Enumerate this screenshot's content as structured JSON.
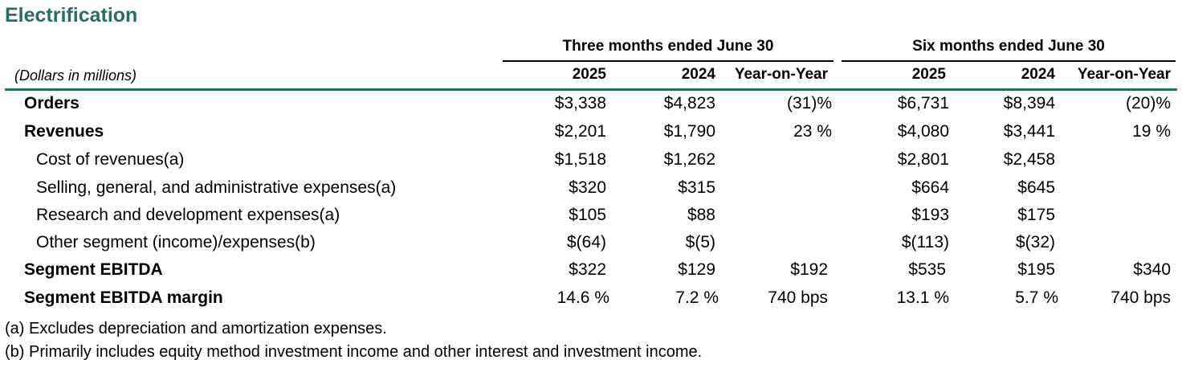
{
  "title": "Electrification",
  "header": {
    "group_three": "Three months ended June 30",
    "group_six": "Six months ended June 30",
    "units": "(Dollars in millions)",
    "columns": [
      "2025",
      "2024",
      "Year-on-Year",
      "2025",
      "2024",
      "Year-on-Year"
    ]
  },
  "rows": [
    {
      "label": "Orders",
      "bold": true,
      "values": [
        "$3,338",
        "$4,823",
        "(31)%",
        "$6,731",
        "$8,394",
        "(20)%"
      ]
    },
    {
      "label": "Revenues",
      "bold": true,
      "values": [
        "$2,201",
        "$1,790",
        "23 %",
        "$4,080",
        "$3,441",
        "19 %"
      ]
    },
    {
      "label": "Cost of revenues(a)",
      "bold": false,
      "values": [
        "$1,518",
        "$1,262",
        "",
        "$2,801",
        "$2,458",
        ""
      ]
    },
    {
      "label": "Selling, general, and administrative expenses(a)",
      "bold": false,
      "values": [
        "$320",
        "$315",
        "",
        "$664",
        "$645",
        ""
      ]
    },
    {
      "label": "Research and development expenses(a)",
      "bold": false,
      "values": [
        "$105",
        "$88",
        "",
        "$193",
        "$175",
        ""
      ]
    },
    {
      "label": "Other segment (income)/expenses(b)",
      "bold": false,
      "values": [
        "$(64)",
        "$(5)",
        "",
        "$(113)",
        "$(32)",
        ""
      ]
    },
    {
      "label": "Segment EBITDA",
      "bold": true,
      "values": [
        "$322",
        "$129",
        "$192",
        "$535",
        "$195",
        "$340"
      ]
    },
    {
      "label": "Segment EBITDA margin",
      "bold": true,
      "values": [
        "14.6 %",
        "7.2 %",
        "740 bps",
        "13.1 %",
        "5.7 %",
        "740 bps"
      ]
    }
  ],
  "footnotes": [
    "(a) Excludes depreciation and amortization expenses.",
    "(b) Primarily includes equity method investment income and other interest and investment income."
  ],
  "colors": {
    "accent": "#2a6b63"
  }
}
